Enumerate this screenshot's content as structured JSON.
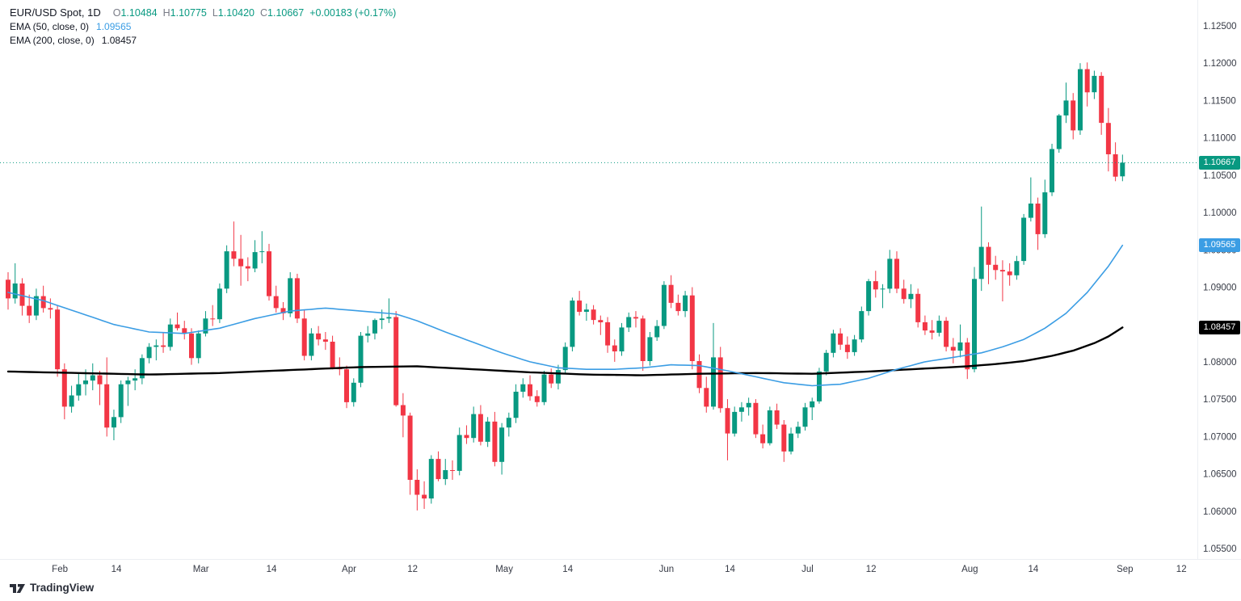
{
  "legend": {
    "title": "EUR/USD Spot, 1D",
    "ohlc": {
      "o_label": "O",
      "o": "1.10484",
      "h_label": "H",
      "h": "1.10775",
      "l_label": "L",
      "l": "1.10420",
      "c_label": "C",
      "c": "1.10667",
      "change": "+0.00183 (+0.17%)"
    },
    "ema50": {
      "label": "EMA (50, close, 0)",
      "value": "1.09565"
    },
    "ema200": {
      "label": "EMA (200, close, 0)",
      "value": "1.08457"
    }
  },
  "price_line": {
    "value": 1.10667,
    "label": "1.10667",
    "color": "#089981"
  },
  "badges": {
    "price_bg": "#089981",
    "ema50_bg": "#3b9de4",
    "ema200_bg": "#000000"
  },
  "axes": {
    "y_min": 1.055,
    "y_max": 1.125,
    "y_ticks": [
      "1.12500",
      "1.12000",
      "1.11500",
      "1.11000",
      "1.10500",
      "1.10000",
      "1.09500",
      "1.09000",
      "1.08500",
      "1.08000",
      "1.07500",
      "1.07000",
      "1.06500",
      "1.06000",
      "1.05500"
    ],
    "x_ticks": [
      {
        "label": "Feb",
        "i": 7
      },
      {
        "label": "14",
        "i": 15
      },
      {
        "label": "Mar",
        "i": 27
      },
      {
        "label": "14",
        "i": 37
      },
      {
        "label": "Apr",
        "i": 48
      },
      {
        "label": "12",
        "i": 57
      },
      {
        "label": "May",
        "i": 70
      },
      {
        "label": "14",
        "i": 79
      },
      {
        "label": "Jun",
        "i": 93
      },
      {
        "label": "14",
        "i": 102
      },
      {
        "label": "Jul",
        "i": 113
      },
      {
        "label": "12",
        "i": 122
      },
      {
        "label": "Aug",
        "i": 136
      },
      {
        "label": "14",
        "i": 145
      },
      {
        "label": "Sep",
        "i": 158
      },
      {
        "label": "12",
        "i": 166
      }
    ]
  },
  "watermark": {
    "text": "TradingView"
  },
  "chart_data": {
    "type": "candlestick",
    "symbol": "EUR/USD Spot",
    "interval": "1D",
    "up_color": "#089981",
    "down_color": "#f23645",
    "ylim": [
      1.055,
      1.125
    ],
    "last": {
      "open": 1.10484,
      "high": 1.10775,
      "low": 1.1042,
      "close": 1.10667,
      "change": "+0.00183 (+0.17%)"
    },
    "candles": [
      [
        1.091,
        1.092,
        1.087,
        1.0885
      ],
      [
        1.0885,
        1.0932,
        1.0878,
        1.0905
      ],
      [
        1.0905,
        1.0912,
        1.0862,
        1.0875
      ],
      [
        1.0875,
        1.089,
        1.0852,
        1.0862
      ],
      [
        1.0862,
        1.0898,
        1.0856,
        1.0888
      ],
      [
        1.0888,
        1.0902,
        1.0866,
        1.0872
      ],
      [
        1.0872,
        1.0885,
        1.0858,
        1.087
      ],
      [
        1.087,
        1.0876,
        1.078,
        1.079
      ],
      [
        1.079,
        1.0798,
        1.0723,
        1.074
      ],
      [
        1.074,
        1.0768,
        1.0732,
        1.0755
      ],
      [
        1.0755,
        1.0785,
        1.0748,
        1.077
      ],
      [
        1.077,
        1.079,
        1.0755,
        1.0775
      ],
      [
        1.0775,
        1.0798,
        1.0762,
        1.0782
      ],
      [
        1.0782,
        1.0788,
        1.0742,
        1.077
      ],
      [
        1.077,
        1.0806,
        1.07,
        1.0712
      ],
      [
        1.0712,
        1.0736,
        1.0695,
        1.0726
      ],
      [
        1.0726,
        1.0775,
        1.0718,
        1.077
      ],
      [
        1.077,
        1.078,
        1.0741,
        1.0775
      ],
      [
        1.0775,
        1.079,
        1.0762,
        1.0778
      ],
      [
        1.0778,
        1.081,
        1.077,
        1.0805
      ],
      [
        1.0805,
        1.0825,
        1.0798,
        1.082
      ],
      [
        1.082,
        1.083,
        1.0802,
        1.0822
      ],
      [
        1.0822,
        1.084,
        1.0812,
        1.082
      ],
      [
        1.082,
        1.0858,
        1.0815,
        1.085
      ],
      [
        1.085,
        1.0866,
        1.0842,
        1.0845
      ],
      [
        1.0845,
        1.0855,
        1.083,
        1.0838
      ],
      [
        1.0838,
        1.0845,
        1.0796,
        1.0805
      ],
      [
        1.0805,
        1.0842,
        1.0798,
        1.0838
      ],
      [
        1.0838,
        1.0868,
        1.0834,
        1.0858
      ],
      [
        1.0858,
        1.0876,
        1.0848,
        1.0857
      ],
      [
        1.0857,
        1.0905,
        1.0852,
        1.0898
      ],
      [
        1.0898,
        1.0956,
        1.0892,
        1.0948
      ],
      [
        1.0948,
        1.0988,
        1.0928,
        1.0938
      ],
      [
        1.0938,
        1.097,
        1.0902,
        1.0928
      ],
      [
        1.0928,
        1.094,
        1.0908,
        1.0925
      ],
      [
        1.0925,
        1.0963,
        1.092,
        1.0947
      ],
      [
        1.0947,
        1.0975,
        1.0932,
        1.0948
      ],
      [
        1.0948,
        1.0958,
        1.0882,
        1.0888
      ],
      [
        1.0888,
        1.0902,
        1.0866,
        1.0872
      ],
      [
        1.0872,
        1.088,
        1.0856,
        1.0865
      ],
      [
        1.0865,
        1.092,
        1.086,
        1.0912
      ],
      [
        1.0912,
        1.0918,
        1.0852,
        1.0858
      ],
      [
        1.0858,
        1.087,
        1.0802,
        1.0808
      ],
      [
        1.0808,
        1.0845,
        1.0802,
        1.0838
      ],
      [
        1.0838,
        1.0848,
        1.0822,
        1.083
      ],
      [
        1.083,
        1.084,
        1.0816,
        1.0827
      ],
      [
        1.0827,
        1.0835,
        1.079,
        1.0792
      ],
      [
        1.0792,
        1.0806,
        1.0782,
        1.079
      ],
      [
        1.079,
        1.0795,
        1.0738,
        1.0746
      ],
      [
        1.0746,
        1.0778,
        1.074,
        1.0772
      ],
      [
        1.0772,
        1.084,
        1.0766,
        1.0835
      ],
      [
        1.0835,
        1.0848,
        1.0826,
        1.0838
      ],
      [
        1.0838,
        1.0858,
        1.083,
        1.0856
      ],
      [
        1.0856,
        1.087,
        1.0844,
        1.0858
      ],
      [
        1.0858,
        1.0885,
        1.0852,
        1.086
      ],
      [
        1.086,
        1.0868,
        1.074,
        1.0742
      ],
      [
        1.0742,
        1.0758,
        1.0699,
        1.0728
      ],
      [
        1.0728,
        1.0732,
        1.0622,
        1.0642
      ],
      [
        1.0642,
        1.0656,
        1.0601,
        1.0622
      ],
      [
        1.0622,
        1.064,
        1.0603,
        1.0617
      ],
      [
        1.0617,
        1.0675,
        1.061,
        1.067
      ],
      [
        1.067,
        1.068,
        1.064,
        1.0643
      ],
      [
        1.0643,
        1.067,
        1.0635,
        1.0655
      ],
      [
        1.0655,
        1.0668,
        1.0642,
        1.0654
      ],
      [
        1.0654,
        1.0712,
        1.0648,
        1.0702
      ],
      [
        1.0702,
        1.0715,
        1.069,
        1.0698
      ],
      [
        1.0698,
        1.074,
        1.0692,
        1.073
      ],
      [
        1.073,
        1.0742,
        1.0688,
        1.0693
      ],
      [
        1.0693,
        1.0726,
        1.0686,
        1.072
      ],
      [
        1.072,
        1.0733,
        1.066,
        1.0666
      ],
      [
        1.0666,
        1.0718,
        1.0649,
        1.0712
      ],
      [
        1.0712,
        1.0732,
        1.07,
        1.0725
      ],
      [
        1.0725,
        1.077,
        1.0718,
        1.076
      ],
      [
        1.076,
        1.0778,
        1.0752,
        1.077
      ],
      [
        1.077,
        1.0782,
        1.0748,
        1.0754
      ],
      [
        1.0754,
        1.0762,
        1.074,
        1.0746
      ],
      [
        1.0746,
        1.0788,
        1.0742,
        1.0783
      ],
      [
        1.0783,
        1.0791,
        1.0765,
        1.0771
      ],
      [
        1.0771,
        1.0796,
        1.0763,
        1.0789
      ],
      [
        1.0789,
        1.0826,
        1.0784,
        1.082
      ],
      [
        1.082,
        1.0886,
        1.0814,
        1.0882
      ],
      [
        1.0882,
        1.0895,
        1.0862,
        1.0867
      ],
      [
        1.0867,
        1.0878,
        1.0855,
        1.087
      ],
      [
        1.087,
        1.0876,
        1.085,
        1.0856
      ],
      [
        1.0856,
        1.0862,
        1.0836,
        1.0853
      ],
      [
        1.0853,
        1.086,
        1.0812,
        1.0822
      ],
      [
        1.0822,
        1.083,
        1.08,
        1.0814
      ],
      [
        1.0814,
        1.0852,
        1.0808,
        1.0846
      ],
      [
        1.0846,
        1.0866,
        1.084,
        1.086
      ],
      [
        1.086,
        1.0868,
        1.0846,
        1.0858
      ],
      [
        1.0858,
        1.0862,
        1.0788,
        1.0801
      ],
      [
        1.0801,
        1.084,
        1.0795,
        1.0833
      ],
      [
        1.0833,
        1.0856,
        1.0828,
        1.0848
      ],
      [
        1.0848,
        1.0908,
        1.0844,
        1.0903
      ],
      [
        1.0903,
        1.0916,
        1.0872,
        1.0879
      ],
      [
        1.0879,
        1.089,
        1.0862,
        1.0868
      ],
      [
        1.0868,
        1.0895,
        1.086,
        1.0889
      ],
      [
        1.0889,
        1.09,
        1.079,
        1.0801
      ],
      [
        1.0801,
        1.081,
        1.0758,
        1.0765
      ],
      [
        1.0765,
        1.078,
        1.0732,
        1.074
      ],
      [
        1.074,
        1.0852,
        1.0736,
        1.0806
      ],
      [
        1.0806,
        1.082,
        1.0732,
        1.0738
      ],
      [
        1.0738,
        1.075,
        1.0668,
        1.0704
      ],
      [
        1.0704,
        1.074,
        1.07,
        1.0733
      ],
      [
        1.0733,
        1.0746,
        1.072,
        1.0739
      ],
      [
        1.0739,
        1.0752,
        1.0728,
        1.0745
      ],
      [
        1.0745,
        1.075,
        1.0698,
        1.0703
      ],
      [
        1.0703,
        1.0716,
        1.0684,
        1.0691
      ],
      [
        1.0691,
        1.074,
        1.0688,
        1.0735
      ],
      [
        1.0735,
        1.0744,
        1.071,
        1.0716
      ],
      [
        1.0716,
        1.0722,
        1.0666,
        1.068
      ],
      [
        1.068,
        1.0712,
        1.0676,
        1.0704
      ],
      [
        1.0704,
        1.072,
        1.0698,
        1.0713
      ],
      [
        1.0713,
        1.0745,
        1.0708,
        1.0739
      ],
      [
        1.0739,
        1.0752,
        1.0722,
        1.0747
      ],
      [
        1.0747,
        1.0792,
        1.0744,
        1.0787
      ],
      [
        1.0787,
        1.0816,
        1.0782,
        1.0812
      ],
      [
        1.0812,
        1.0843,
        1.0806,
        1.0838
      ],
      [
        1.0838,
        1.0845,
        1.0816,
        1.0823
      ],
      [
        1.0823,
        1.0834,
        1.0804,
        1.0813
      ],
      [
        1.0813,
        1.0836,
        1.0808,
        1.083
      ],
      [
        1.083,
        1.0874,
        1.0826,
        1.0868
      ],
      [
        1.0868,
        1.0911,
        1.0862,
        1.0908
      ],
      [
        1.0908,
        1.0922,
        1.0886,
        1.0897
      ],
      [
        1.0897,
        1.0904,
        1.0872,
        1.0898
      ],
      [
        1.0898,
        1.095,
        1.0892,
        1.0938
      ],
      [
        1.0938,
        1.0948,
        1.0892,
        1.0898
      ],
      [
        1.0898,
        1.091,
        1.0878,
        1.0884
      ],
      [
        1.0884,
        1.0904,
        1.0872,
        1.0891
      ],
      [
        1.0891,
        1.0898,
        1.0846,
        1.0853
      ],
      [
        1.0853,
        1.0862,
        1.0836,
        1.0842
      ],
      [
        1.0842,
        1.0856,
        1.083,
        1.0839
      ],
      [
        1.0839,
        1.0862,
        1.0834,
        1.0855
      ],
      [
        1.0855,
        1.086,
        1.0814,
        1.082
      ],
      [
        1.082,
        1.0832,
        1.0798,
        1.0815
      ],
      [
        1.0815,
        1.085,
        1.0806,
        1.0826
      ],
      [
        1.0826,
        1.0832,
        1.0777,
        1.079
      ],
      [
        1.079,
        1.0927,
        1.0786,
        1.0911
      ],
      [
        1.0911,
        1.1008,
        1.0895,
        1.0954
      ],
      [
        1.0954,
        1.096,
        1.0904,
        1.093
      ],
      [
        1.093,
        1.0942,
        1.091,
        1.0923
      ],
      [
        1.0923,
        1.0936,
        1.0881,
        1.0921
      ],
      [
        1.0921,
        1.0932,
        1.0902,
        1.0916
      ],
      [
        1.0916,
        1.0942,
        1.091,
        1.0935
      ],
      [
        1.0935,
        1.0998,
        1.093,
        1.0993
      ],
      [
        1.0993,
        1.1047,
        1.0988,
        1.1012
      ],
      [
        1.1012,
        1.102,
        1.095,
        1.0971
      ],
      [
        1.0971,
        1.1044,
        1.0966,
        1.1027
      ],
      [
        1.1027,
        1.1092,
        1.1022,
        1.1085
      ],
      [
        1.1085,
        1.1132,
        1.108,
        1.113
      ],
      [
        1.113,
        1.1174,
        1.112,
        1.115
      ],
      [
        1.115,
        1.116,
        1.1098,
        1.111
      ],
      [
        1.111,
        1.12,
        1.1104,
        1.1192
      ],
      [
        1.1192,
        1.1201,
        1.1142,
        1.1161
      ],
      [
        1.1161,
        1.119,
        1.1152,
        1.1183
      ],
      [
        1.1183,
        1.1188,
        1.1104,
        1.112
      ],
      [
        1.112,
        1.114,
        1.1055,
        1.1078
      ],
      [
        1.1078,
        1.1094,
        1.1042,
        1.1048
      ],
      [
        1.10484,
        1.10775,
        1.1042,
        1.10667
      ]
    ],
    "indicators": [
      {
        "name": "EMA 50",
        "length": 50,
        "source": "close",
        "offset": 0,
        "color": "#3b9de4",
        "last_value": 1.09565,
        "points": [
          [
            0,
            1.0893
          ],
          [
            5,
            1.0882
          ],
          [
            10,
            1.0866
          ],
          [
            15,
            1.085
          ],
          [
            20,
            1.084
          ],
          [
            25,
            1.0838
          ],
          [
            30,
            1.0845
          ],
          [
            35,
            1.0858
          ],
          [
            40,
            1.0868
          ],
          [
            45,
            1.0872
          ],
          [
            50,
            1.0868
          ],
          [
            55,
            1.0864
          ],
          [
            58,
            1.0855
          ],
          [
            62,
            1.084
          ],
          [
            66,
            1.0826
          ],
          [
            70,
            1.0812
          ],
          [
            74,
            1.08
          ],
          [
            78,
            1.0792
          ],
          [
            82,
            1.079
          ],
          [
            86,
            1.079
          ],
          [
            90,
            1.0792
          ],
          [
            94,
            1.0796
          ],
          [
            98,
            1.0795
          ],
          [
            102,
            1.0788
          ],
          [
            106,
            1.078
          ],
          [
            110,
            1.0772
          ],
          [
            114,
            1.0768
          ],
          [
            118,
            1.077
          ],
          [
            122,
            1.0778
          ],
          [
            126,
            1.079
          ],
          [
            130,
            1.08
          ],
          [
            134,
            1.0806
          ],
          [
            138,
            1.0812
          ],
          [
            141,
            1.082
          ],
          [
            144,
            1.083
          ],
          [
            147,
            1.0845
          ],
          [
            150,
            1.0865
          ],
          [
            153,
            1.0893
          ],
          [
            156,
            1.0928
          ],
          [
            158,
            1.0956
          ]
        ]
      },
      {
        "name": "EMA 200",
        "length": 200,
        "source": "close",
        "offset": 0,
        "color": "#000000",
        "last_value": 1.08457,
        "points": [
          [
            0,
            1.0787
          ],
          [
            10,
            1.0785
          ],
          [
            20,
            1.0783
          ],
          [
            30,
            1.0785
          ],
          [
            40,
            1.0789
          ],
          [
            50,
            1.0793
          ],
          [
            58,
            1.0794
          ],
          [
            66,
            1.079
          ],
          [
            74,
            1.0786
          ],
          [
            82,
            1.0783
          ],
          [
            90,
            1.0782
          ],
          [
            98,
            1.0784
          ],
          [
            106,
            1.0785
          ],
          [
            114,
            1.0784
          ],
          [
            122,
            1.0787
          ],
          [
            130,
            1.0791
          ],
          [
            136,
            1.0794
          ],
          [
            140,
            1.0797
          ],
          [
            144,
            1.0801
          ],
          [
            148,
            1.0808
          ],
          [
            151,
            1.0815
          ],
          [
            154,
            1.0825
          ],
          [
            156,
            1.0834
          ],
          [
            158,
            1.0846
          ]
        ]
      }
    ]
  }
}
